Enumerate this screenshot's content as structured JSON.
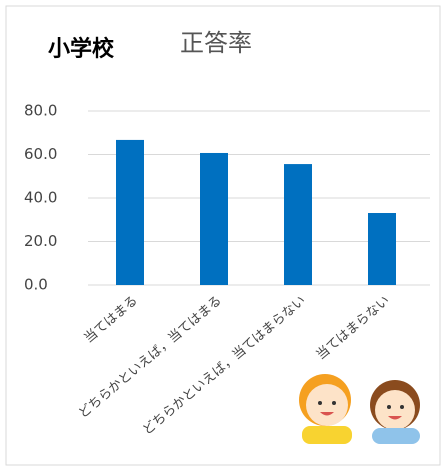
{
  "chart_data": {
    "type": "bar",
    "label": "小学校",
    "title": "正答率",
    "categories": [
      "当てはまる",
      "どちらかといえば，当てはまる",
      "どちらかといえば，当てはまらない",
      "当てはまらない"
    ],
    "values": [
      66.7,
      60.7,
      55.6,
      33.1
    ],
    "color": "#0070c0",
    "ylim": [
      0,
      80
    ],
    "yticks": [
      {
        "value": 0,
        "label": "0.0"
      },
      {
        "value": 20,
        "label": "20.0"
      },
      {
        "value": 40,
        "label": "40.0"
      },
      {
        "value": 60,
        "label": "60.0"
      },
      {
        "value": 80,
        "label": "80.0"
      }
    ],
    "grid": true
  }
}
